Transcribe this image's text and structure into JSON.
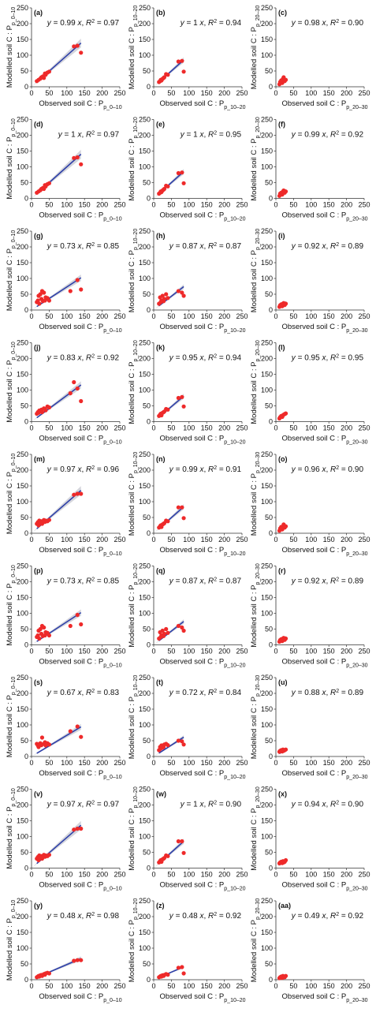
{
  "figure": {
    "axis_ticks": [
      "0",
      "50",
      "100",
      "150",
      "200",
      "250"
    ],
    "y_label_prefix": "Modelled soil C : P",
    "x_label_prefix": "Observed soil C : P",
    "layers": [
      "p_0–10",
      "p_10–20",
      "p_20–30"
    ],
    "colors": {
      "points": "#ee2a2a",
      "fit_line": "#2d3fa8",
      "ci_band": "#c9cbd3",
      "axis": "#333333"
    }
  },
  "chart_data": [
    {
      "type": "scatter",
      "panel": "(a)",
      "layer": "p_0–10",
      "slope": "0.99",
      "r2": "0.97",
      "xlim": [
        0,
        250
      ],
      "ylim": [
        0,
        250
      ],
      "x": [
        15,
        20,
        25,
        28,
        32,
        35,
        38,
        40,
        45,
        50,
        120,
        130,
        140
      ],
      "y": [
        18,
        22,
        26,
        30,
        33,
        28,
        42,
        38,
        45,
        48,
        128,
        130,
        108
      ]
    },
    {
      "type": "scatter",
      "panel": "(b)",
      "layer": "p_10–20",
      "slope": "1",
      "r2": "0.94",
      "xlim": [
        0,
        250
      ],
      "ylim": [
        0,
        250
      ],
      "x": [
        15,
        18,
        20,
        22,
        25,
        28,
        30,
        35,
        40,
        70,
        80,
        85
      ],
      "y": [
        15,
        18,
        22,
        20,
        25,
        28,
        30,
        40,
        38,
        80,
        82,
        48
      ]
    },
    {
      "type": "scatter",
      "panel": "(c)",
      "layer": "p_20–30",
      "slope": "0.98",
      "r2": "0.90",
      "xlim": [
        0,
        250
      ],
      "ylim": [
        0,
        250
      ],
      "x": [
        10,
        12,
        15,
        18,
        20,
        22,
        25,
        28
      ],
      "y": [
        8,
        15,
        20,
        12,
        25,
        30,
        18,
        22
      ]
    },
    {
      "type": "scatter",
      "panel": "(d)",
      "layer": "p_0–10",
      "slope": "1",
      "r2": "0.97",
      "xlim": [
        0,
        250
      ],
      "ylim": [
        0,
        250
      ],
      "x": [
        15,
        20,
        25,
        28,
        32,
        35,
        38,
        40,
        45,
        50,
        120,
        130,
        140
      ],
      "y": [
        18,
        22,
        26,
        30,
        33,
        30,
        42,
        38,
        45,
        48,
        128,
        130,
        108
      ]
    },
    {
      "type": "scatter",
      "panel": "(e)",
      "layer": "p_10–20",
      "slope": "1",
      "r2": "0.95",
      "xlim": [
        0,
        250
      ],
      "ylim": [
        0,
        250
      ],
      "x": [
        15,
        18,
        20,
        22,
        25,
        28,
        30,
        35,
        40,
        70,
        80,
        85
      ],
      "y": [
        15,
        18,
        22,
        20,
        25,
        28,
        30,
        40,
        38,
        80,
        82,
        48
      ]
    },
    {
      "type": "scatter",
      "panel": "(f)",
      "layer": "p_20–30",
      "slope": "0.99",
      "r2": "0.92",
      "xlim": [
        0,
        250
      ],
      "ylim": [
        0,
        250
      ],
      "x": [
        10,
        12,
        15,
        18,
        20,
        22,
        25,
        28
      ],
      "y": [
        8,
        15,
        18,
        12,
        22,
        25,
        18,
        22
      ]
    },
    {
      "type": "scatter",
      "panel": "(g)",
      "layer": "p_0–10",
      "slope": "0.73",
      "r2": "0.85",
      "xlim": [
        0,
        250
      ],
      "ylim": [
        0,
        250
      ],
      "x": [
        15,
        18,
        20,
        22,
        25,
        28,
        30,
        32,
        35,
        38,
        40,
        45,
        50,
        110,
        130,
        140
      ],
      "y": [
        25,
        30,
        45,
        20,
        50,
        35,
        60,
        28,
        55,
        30,
        40,
        38,
        30,
        60,
        95,
        65
      ]
    },
    {
      "type": "scatter",
      "panel": "(h)",
      "layer": "p_10–20",
      "slope": "0.87",
      "r2": "0.87",
      "xlim": [
        0,
        250
      ],
      "ylim": [
        0,
        250
      ],
      "x": [
        15,
        18,
        20,
        22,
        25,
        28,
        30,
        35,
        40,
        70,
        80,
        85
      ],
      "y": [
        20,
        40,
        25,
        30,
        45,
        28,
        35,
        50,
        38,
        60,
        55,
        45
      ]
    },
    {
      "type": "scatter",
      "panel": "(i)",
      "layer": "p_20–30",
      "slope": "0.92",
      "r2": "0.89",
      "xlim": [
        0,
        250
      ],
      "ylim": [
        0,
        250
      ],
      "x": [
        10,
        12,
        15,
        18,
        20,
        22,
        25,
        28
      ],
      "y": [
        10,
        15,
        18,
        12,
        20,
        22,
        16,
        20
      ]
    },
    {
      "type": "scatter",
      "panel": "(j)",
      "layer": "p_0–10",
      "slope": "0.83",
      "r2": "0.92",
      "xlim": [
        0,
        250
      ],
      "ylim": [
        0,
        250
      ],
      "x": [
        15,
        18,
        20,
        22,
        25,
        28,
        30,
        35,
        38,
        40,
        45,
        50,
        110,
        120,
        130,
        140
      ],
      "y": [
        25,
        30,
        28,
        35,
        32,
        38,
        30,
        42,
        40,
        36,
        48,
        45,
        90,
        125,
        105,
        65
      ]
    },
    {
      "type": "scatter",
      "panel": "(k)",
      "layer": "p_10–20",
      "slope": "0.95",
      "r2": "0.94",
      "xlim": [
        0,
        250
      ],
      "ylim": [
        0,
        250
      ],
      "x": [
        15,
        18,
        20,
        22,
        25,
        28,
        30,
        35,
        40,
        70,
        80,
        85
      ],
      "y": [
        18,
        22,
        25,
        20,
        28,
        30,
        32,
        40,
        38,
        75,
        78,
        48
      ]
    },
    {
      "type": "scatter",
      "panel": "(l)",
      "layer": "p_20–30",
      "slope": "0.95",
      "r2": "0.95",
      "xlim": [
        0,
        250
      ],
      "ylim": [
        0,
        250
      ],
      "x": [
        10,
        12,
        15,
        18,
        20,
        22,
        25,
        28
      ],
      "y": [
        10,
        14,
        18,
        15,
        20,
        22,
        24,
        26
      ]
    },
    {
      "type": "scatter",
      "panel": "(m)",
      "layer": "p_0–10",
      "slope": "0.97",
      "r2": "0.96",
      "xlim": [
        0,
        250
      ],
      "ylim": [
        0,
        250
      ],
      "x": [
        15,
        18,
        20,
        22,
        25,
        28,
        30,
        35,
        38,
        40,
        45,
        50,
        120,
        130,
        140
      ],
      "y": [
        30,
        35,
        25,
        40,
        32,
        38,
        30,
        42,
        36,
        40,
        38,
        42,
        122,
        125,
        125
      ]
    },
    {
      "type": "scatter",
      "panel": "(n)",
      "layer": "p_10–20",
      "slope": "0.99",
      "r2": "0.91",
      "xlim": [
        0,
        250
      ],
      "ylim": [
        0,
        250
      ],
      "x": [
        15,
        18,
        20,
        22,
        25,
        28,
        30,
        35,
        40,
        70,
        80,
        85
      ],
      "y": [
        18,
        22,
        25,
        20,
        28,
        30,
        32,
        40,
        38,
        82,
        82,
        48
      ]
    },
    {
      "type": "scatter",
      "panel": "(o)",
      "layer": "p_20–30",
      "slope": "0.96",
      "r2": "0.90",
      "xlim": [
        0,
        250
      ],
      "ylim": [
        0,
        250
      ],
      "x": [
        10,
        12,
        15,
        18,
        20,
        22,
        25,
        28
      ],
      "y": [
        8,
        15,
        20,
        12,
        22,
        28,
        18,
        22
      ]
    },
    {
      "type": "scatter",
      "panel": "(p)",
      "layer": "p_0–10",
      "slope": "0.73",
      "r2": "0.85",
      "xlim": [
        0,
        250
      ],
      "ylim": [
        0,
        250
      ],
      "x": [
        15,
        18,
        20,
        22,
        25,
        28,
        30,
        32,
        35,
        38,
        40,
        45,
        50,
        110,
        130,
        140
      ],
      "y": [
        25,
        30,
        45,
        20,
        50,
        35,
        60,
        28,
        55,
        30,
        40,
        38,
        30,
        60,
        95,
        65
      ]
    },
    {
      "type": "scatter",
      "panel": "(q)",
      "layer": "p_10–20",
      "slope": "0.87",
      "r2": "0.87",
      "xlim": [
        0,
        250
      ],
      "ylim": [
        0,
        250
      ],
      "x": [
        15,
        18,
        20,
        22,
        25,
        28,
        30,
        35,
        40,
        70,
        80,
        85
      ],
      "y": [
        20,
        40,
        25,
        30,
        45,
        28,
        35,
        50,
        38,
        60,
        55,
        45
      ]
    },
    {
      "type": "scatter",
      "panel": "(r)",
      "layer": "p_20–30",
      "slope": "0.92",
      "r2": "0.89",
      "xlim": [
        0,
        250
      ],
      "ylim": [
        0,
        250
      ],
      "x": [
        10,
        12,
        15,
        18,
        20,
        22,
        25,
        28
      ],
      "y": [
        10,
        15,
        18,
        12,
        20,
        22,
        16,
        20
      ]
    },
    {
      "type": "scatter",
      "panel": "(s)",
      "layer": "p_0–10",
      "slope": "0.67",
      "r2": "0.83",
      "xlim": [
        0,
        250
      ],
      "ylim": [
        0,
        250
      ],
      "x": [
        15,
        18,
        20,
        22,
        25,
        28,
        30,
        35,
        38,
        40,
        45,
        50,
        110,
        130,
        140
      ],
      "y": [
        40,
        35,
        30,
        38,
        42,
        36,
        60,
        40,
        45,
        35,
        42,
        38,
        80,
        95,
        62
      ]
    },
    {
      "type": "scatter",
      "panel": "(t)",
      "layer": "p_10–20",
      "slope": "0.72",
      "r2": "0.84",
      "xlim": [
        0,
        250
      ],
      "ylim": [
        0,
        250
      ],
      "x": [
        15,
        18,
        20,
        22,
        25,
        28,
        30,
        35,
        40,
        70,
        80,
        85
      ],
      "y": [
        20,
        30,
        25,
        35,
        28,
        30,
        38,
        40,
        36,
        50,
        48,
        38
      ]
    },
    {
      "type": "scatter",
      "panel": "(u)",
      "layer": "p_20–30",
      "slope": "0.88",
      "r2": "0.89",
      "xlim": [
        0,
        250
      ],
      "ylim": [
        0,
        250
      ],
      "x": [
        10,
        12,
        15,
        18,
        20,
        22,
        25,
        28
      ],
      "y": [
        15,
        18,
        20,
        16,
        22,
        18,
        20,
        22
      ]
    },
    {
      "type": "scatter",
      "panel": "(v)",
      "layer": "p_0–10",
      "slope": "0.97",
      "r2": "0.97",
      "xlim": [
        0,
        250
      ],
      "ylim": [
        0,
        250
      ],
      "x": [
        15,
        18,
        20,
        22,
        25,
        28,
        30,
        35,
        38,
        40,
        45,
        50,
        120,
        130,
        140
      ],
      "y": [
        30,
        35,
        25,
        40,
        32,
        38,
        30,
        42,
        36,
        40,
        38,
        42,
        122,
        125,
        125
      ]
    },
    {
      "type": "scatter",
      "panel": "(w)",
      "layer": "p_10–20",
      "slope": "1",
      "r2": "0.90",
      "xlim": [
        0,
        250
      ],
      "ylim": [
        0,
        250
      ],
      "x": [
        15,
        18,
        20,
        22,
        25,
        28,
        30,
        35,
        40,
        70,
        80,
        85
      ],
      "y": [
        18,
        22,
        25,
        20,
        28,
        30,
        32,
        40,
        38,
        85,
        85,
        48
      ]
    },
    {
      "type": "scatter",
      "panel": "(x)",
      "layer": "p_20–30",
      "slope": "0.94",
      "r2": "0.90",
      "xlim": [
        0,
        250
      ],
      "ylim": [
        0,
        250
      ],
      "x": [
        10,
        12,
        15,
        18,
        20,
        22,
        25,
        28
      ],
      "y": [
        15,
        18,
        20,
        16,
        22,
        18,
        20,
        25
      ]
    },
    {
      "type": "scatter",
      "panel": "(y)",
      "layer": "p_0–10",
      "slope": "0.48",
      "r2": "0.98",
      "xlim": [
        0,
        250
      ],
      "ylim": [
        0,
        250
      ],
      "x": [
        15,
        18,
        20,
        22,
        25,
        28,
        30,
        35,
        38,
        40,
        45,
        50,
        120,
        130,
        140
      ],
      "y": [
        8,
        10,
        12,
        10,
        14,
        15,
        12,
        18,
        16,
        20,
        22,
        20,
        60,
        62,
        62
      ]
    },
    {
      "type": "scatter",
      "panel": "(z)",
      "layer": "p_10–20",
      "slope": "0.48",
      "r2": "0.92",
      "xlim": [
        0,
        250
      ],
      "ylim": [
        0,
        250
      ],
      "x": [
        15,
        18,
        20,
        22,
        25,
        28,
        30,
        35,
        40,
        70,
        80,
        85
      ],
      "y": [
        8,
        10,
        12,
        10,
        14,
        12,
        15,
        18,
        16,
        38,
        40,
        20
      ]
    },
    {
      "type": "scatter",
      "panel": "(aa)",
      "layer": "p_20–30",
      "slope": "0.49",
      "r2": "0.92",
      "xlim": [
        0,
        250
      ],
      "ylim": [
        0,
        250
      ],
      "x": [
        10,
        12,
        15,
        18,
        20,
        22,
        25,
        28
      ],
      "y": [
        5,
        8,
        10,
        6,
        12,
        10,
        8,
        12
      ]
    }
  ]
}
